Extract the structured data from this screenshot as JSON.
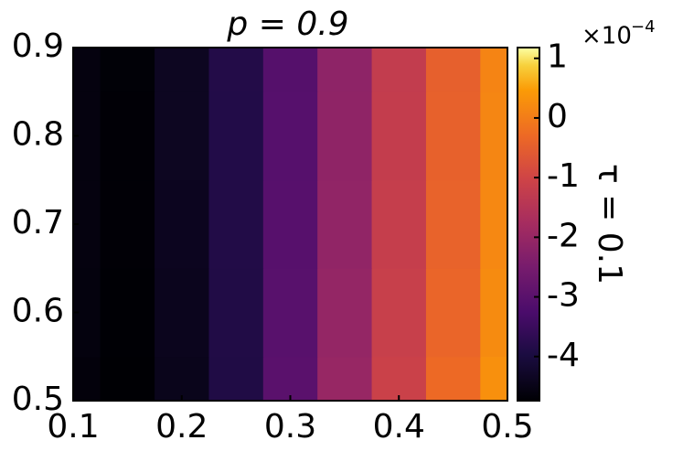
{
  "chart_data": {
    "type": "heatmap",
    "title": "p = 0.9",
    "x": [
      0.1,
      0.15,
      0.2,
      0.25,
      0.3,
      0.35,
      0.4,
      0.45,
      0.5
    ],
    "y": [
      0.5,
      0.6,
      0.7,
      0.8,
      0.9
    ],
    "z": [
      [
        -4.65,
        -4.74,
        -4.45,
        -3.9,
        -3.0,
        -2.0,
        -1.1,
        -0.3,
        0.3
      ],
      [
        -4.62,
        -4.73,
        -4.42,
        -3.88,
        -3.02,
        -2.05,
        -1.15,
        -0.38,
        0.22
      ],
      [
        -4.6,
        -4.72,
        -4.4,
        -3.87,
        -3.05,
        -2.1,
        -1.2,
        -0.42,
        0.17
      ],
      [
        -4.6,
        -4.71,
        -4.38,
        -3.86,
        -3.06,
        -2.12,
        -1.23,
        -0.45,
        0.14
      ],
      [
        -4.6,
        -4.7,
        -4.37,
        -3.85,
        -3.07,
        -2.14,
        -1.25,
        -0.47,
        0.12
      ]
    ],
    "xlim": [
      0.1,
      0.5
    ],
    "ylim": [
      0.5,
      0.9
    ],
    "xticks": [
      0.1,
      0.2,
      0.3,
      0.4,
      0.5
    ],
    "yticks": [
      0.5,
      0.6,
      0.7,
      0.8,
      0.9
    ],
    "colormap": "inferno",
    "clim": [
      -4.74,
      1.18
    ],
    "cticks": [
      -4,
      -3,
      -2,
      -1,
      0,
      1
    ],
    "colorbar_label": "τ = 0.1",
    "colorbar_multiplier_base": "×10",
    "colorbar_multiplier_exponent": "−4"
  }
}
